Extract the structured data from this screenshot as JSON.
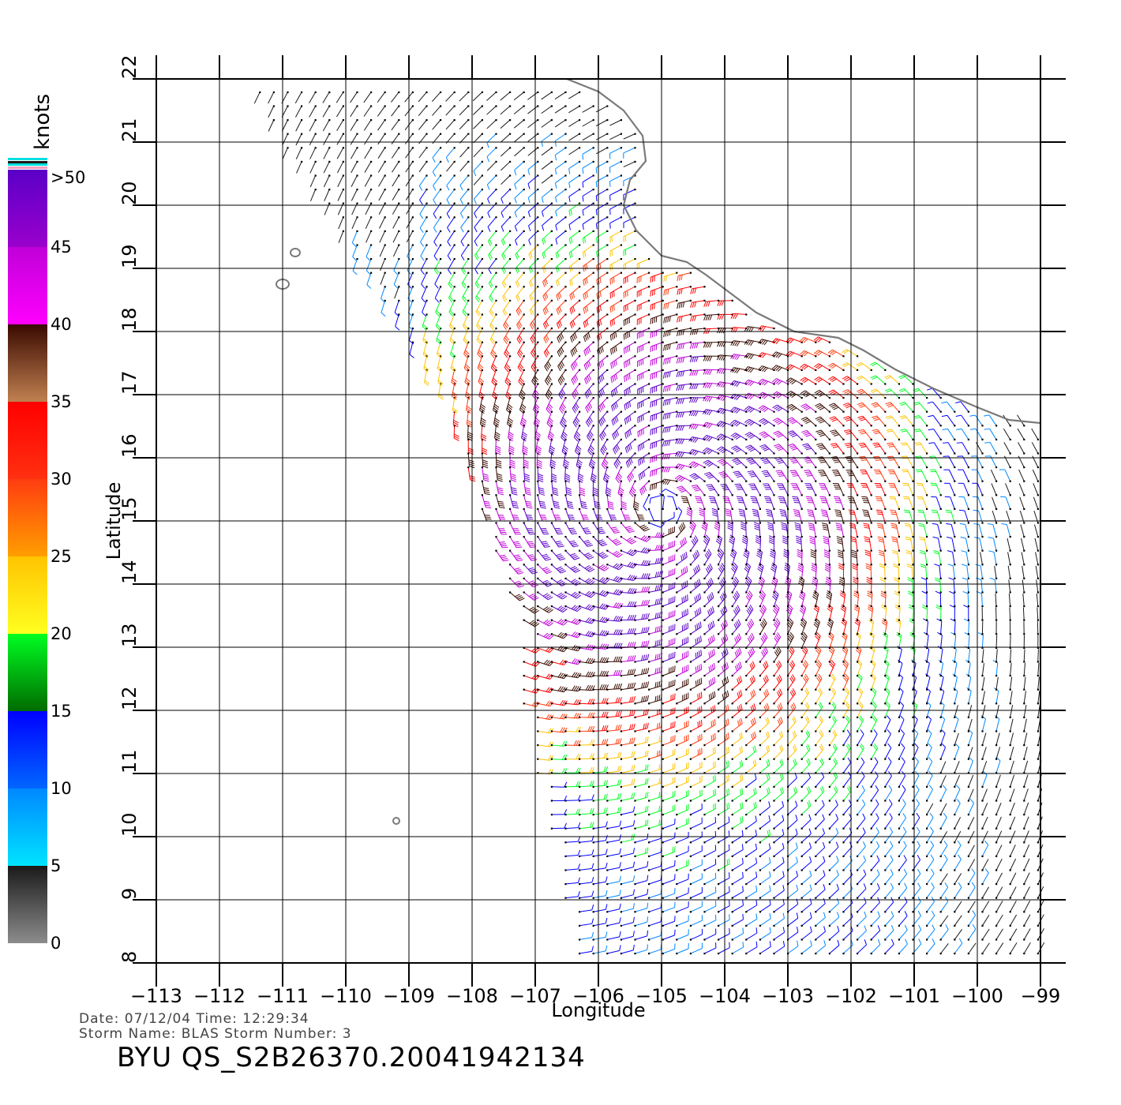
{
  "colorbar": {
    "unit_label": "knots",
    "tick_labels": [
      "0",
      "5",
      "10",
      "15",
      "20",
      "25",
      "30",
      "35",
      "40",
      "45",
      ">50"
    ],
    "bands": [
      {
        "from": 0,
        "to": 5,
        "top_color": "#1a1a1a",
        "bottom_color": "#8c8c8c"
      },
      {
        "from": 5,
        "to": 10,
        "top_color": "#0088ff",
        "bottom_color": "#00e4ff"
      },
      {
        "from": 10,
        "to": 15,
        "top_color": "#0000ff",
        "bottom_color": "#0066ff"
      },
      {
        "from": 15,
        "to": 20,
        "top_color": "#00ff22",
        "bottom_color": "#006b00"
      },
      {
        "from": 20,
        "to": 25,
        "top_color": "#ffc400",
        "bottom_color": "#ffff20"
      },
      {
        "from": 25,
        "to": 30,
        "top_color": "#ff3c10",
        "bottom_color": "#ff9e00"
      },
      {
        "from": 30,
        "to": 35,
        "top_color": "#ff0000",
        "bottom_color": "#ff3010"
      },
      {
        "from": 35,
        "to": 40,
        "top_color": "#3a0a00",
        "bottom_color": "#c08050"
      },
      {
        "from": 40,
        "to": 45,
        "top_color": "#c000d8",
        "bottom_color": "#ff00ff"
      },
      {
        "from": 45,
        "to": 50,
        "top_color": "#5a00c8",
        "bottom_color": "#9a00cc"
      }
    ]
  },
  "map": {
    "xlabel": "Longitude",
    "ylabel": "Latitude",
    "lon_range": [
      -113,
      -99
    ],
    "lat_range": [
      8,
      22
    ],
    "lon_ticks": [
      "−113",
      "−112",
      "−111",
      "−110",
      "−109",
      "−108",
      "−107",
      "−106",
      "−105",
      "−104",
      "−103",
      "−102",
      "−101",
      "−100",
      "−99"
    ],
    "lat_ticks": [
      "8",
      "9",
      "10",
      "11",
      "12",
      "13",
      "14",
      "15",
      "16",
      "17",
      "18",
      "19",
      "20",
      "21",
      "22"
    ],
    "coastline_color": "#7a7a7a",
    "storm_center": {
      "lon": -105.0,
      "lat": 15.2
    },
    "coastline": [
      [
        -106.5,
        22.0
      ],
      [
        -106.0,
        21.8
      ],
      [
        -105.6,
        21.5
      ],
      [
        -105.3,
        21.1
      ],
      [
        -105.25,
        20.7
      ],
      [
        -105.5,
        20.4
      ],
      [
        -105.6,
        20.0
      ],
      [
        -105.4,
        19.6
      ],
      [
        -105.0,
        19.2
      ],
      [
        -104.6,
        19.1
      ],
      [
        -104.3,
        18.9
      ],
      [
        -103.9,
        18.6
      ],
      [
        -103.5,
        18.3
      ],
      [
        -102.9,
        18.0
      ],
      [
        -102.2,
        17.9
      ],
      [
        -101.8,
        17.7
      ],
      [
        -101.3,
        17.4
      ],
      [
        -100.7,
        17.1
      ],
      [
        -100.0,
        16.8
      ],
      [
        -99.5,
        16.6
      ],
      [
        -99.0,
        16.55
      ]
    ],
    "islands": [
      {
        "lon": -110.8,
        "lat": 19.25
      },
      {
        "lon": -111.0,
        "lat": 18.75
      },
      {
        "lon": -109.2,
        "lat": 10.25
      }
    ]
  },
  "footer": {
    "date_line": "Date: 07/12/04   Time: 12:29:34",
    "storm_line": "Storm  Name:  BLAS   Storm  Number:  3",
    "product_id": "BYU  QS_S2B26370.20041942134"
  }
}
